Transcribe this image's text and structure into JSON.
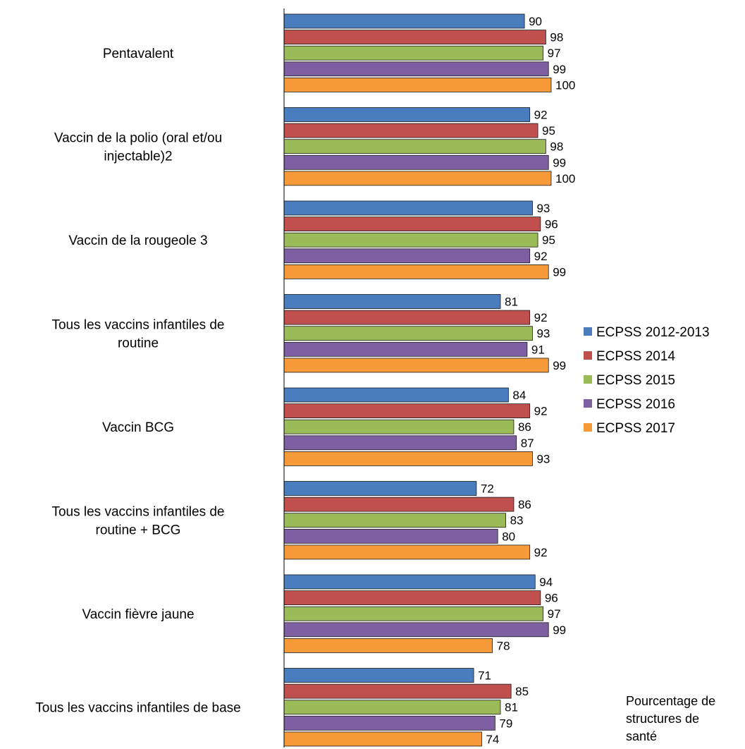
{
  "chart_data": {
    "type": "bar",
    "orientation": "horizontal",
    "categories": [
      [
        "Pentavalent"
      ],
      [
        "Vaccin de la polio (oral et/ou",
        "injectable)2"
      ],
      [
        "Vaccin de la rougeole 3"
      ],
      [
        "Tous les vaccins infantiles de",
        "routine"
      ],
      [
        "Vaccin BCG"
      ],
      [
        "Tous les vaccins infantiles de",
        "routine + BCG"
      ],
      [
        "Vaccin fièvre jaune"
      ],
      [
        "Tous les vaccins infantiles de base"
      ]
    ],
    "series": [
      {
        "name": "ECPSS 2012-2013",
        "color": "#4a7dbd",
        "values": [
          90,
          92,
          93,
          81,
          84,
          72,
          94,
          71
        ]
      },
      {
        "name": "ECPSS 2014",
        "color": "#c0504d",
        "values": [
          98,
          95,
          96,
          92,
          92,
          86,
          96,
          85
        ]
      },
      {
        "name": "ECPSS 2015",
        "color": "#9bbb59",
        "values": [
          97,
          98,
          95,
          93,
          86,
          83,
          97,
          81
        ]
      },
      {
        "name": "ECPSS 2016",
        "color": "#7e5fa1",
        "values": [
          99,
          99,
          92,
          91,
          87,
          80,
          99,
          79
        ]
      },
      {
        "name": "ECPSS 2017",
        "color": "#f79a3a",
        "values": [
          100,
          100,
          99,
          99,
          93,
          92,
          78,
          74
        ]
      }
    ],
    "xlim": [
      0,
      100
    ],
    "xlabel": [
      "Pourcentage de",
      "structures de",
      "santé"
    ],
    "legend_position": "right",
    "grid": false
  }
}
